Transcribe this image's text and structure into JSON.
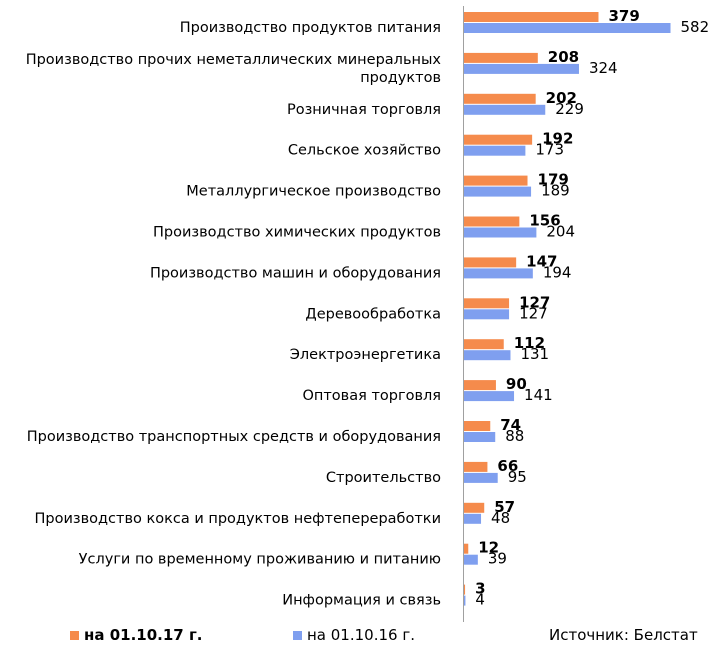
{
  "chart_data": {
    "type": "bar",
    "orientation": "horizontal",
    "categories": [
      "Производство продуктов питания",
      "Производство прочих неметаллических минеральных продуктов",
      "Розничная торговля",
      "Сельское хозяйство",
      "Металлургическое производство",
      "Производство химических продуктов",
      "Производство машин и оборудования",
      "Деревообработка",
      "Электроэнергетика",
      "Оптовая торговля",
      "Производство транспортных средств и оборудования",
      "Строительство",
      "Производство кокса и продуктов нефтепереработки",
      "Услуги по временному проживанию и питанию",
      "Информация и связь"
    ],
    "category_display_lines": [
      [
        "Производство продуктов питания"
      ],
      [
        "Производство прочих неметаллических минеральных",
        "продуктов"
      ],
      [
        "Розничная торговля"
      ],
      [
        "Сельское хозяйство"
      ],
      [
        "Металлургическое производство"
      ],
      [
        "Производство химических продуктов"
      ],
      [
        "Производство машин и оборудования"
      ],
      [
        "Деревообработка"
      ],
      [
        "Электроэнергетика"
      ],
      [
        "Оптовая торговля"
      ],
      [
        "Производство транспортных средств и оборудования"
      ],
      [
        "Строительство"
      ],
      [
        "Производство кокса и продуктов нефтепереработки"
      ],
      [
        "Услуги по временному проживанию и питанию"
      ],
      [
        "Информация и связь"
      ]
    ],
    "series": [
      {
        "name": "на 01.10.17 г.",
        "color": "#F58B4C",
        "bold_labels": true,
        "values": [
          379,
          208,
          202,
          192,
          179,
          156,
          147,
          127,
          112,
          90,
          74,
          66,
          57,
          12,
          3
        ]
      },
      {
        "name": "на 01.10.16 г.",
        "color": "#7F9FEF",
        "bold_labels": false,
        "values": [
          582,
          324,
          229,
          173,
          189,
          204,
          194,
          127,
          131,
          141,
          88,
          95,
          48,
          39,
          4
        ]
      }
    ],
    "xlim": [
      0,
      620
    ],
    "grid": false,
    "legend_position": "bottom-left",
    "source_note": "Источник: Белстат"
  }
}
